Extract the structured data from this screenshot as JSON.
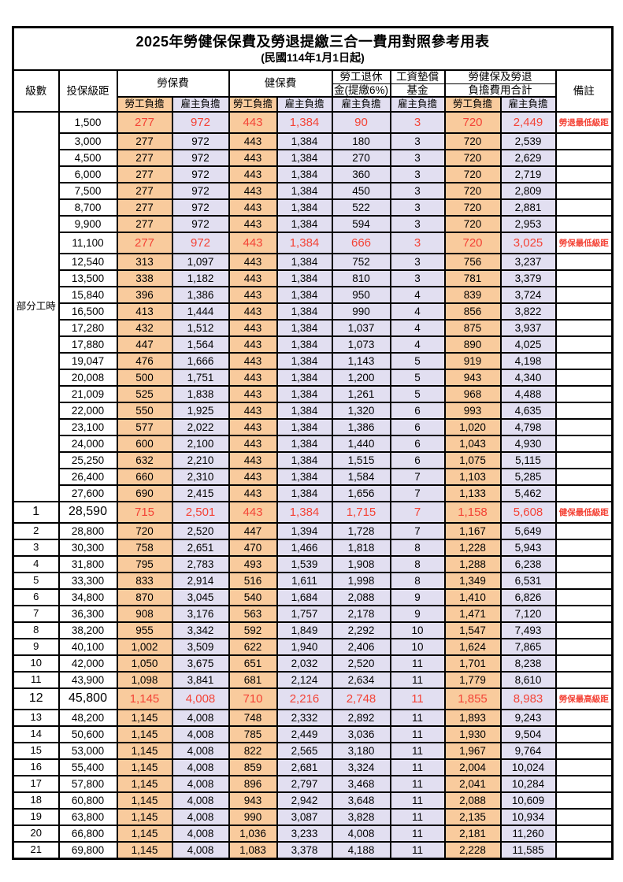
{
  "title": "2025年勞健保保費及勞退提繳三合一費用對照參考用表",
  "subtitle": "(民國114年1月1日起)",
  "header": {
    "level": "級數",
    "salary": "投保級距",
    "labor": "勞保費",
    "health": "健保費",
    "pension_line1": "勞工退休",
    "pension_line2": "金(提繳6%)",
    "fund_line1": "工資墊償",
    "fund_line2": "基金",
    "total_line1": "勞健保及勞退",
    "total_line2": "負擔費用合計",
    "remark": "備註",
    "employee_share": "勞工負擔",
    "employer_share": "雇主負擔"
  },
  "part_time_label": "部分工時",
  "colors": {
    "employee_bg": "#F9CB9D",
    "employer_bg": "#E2DFF1",
    "highlight_text": "#F44336",
    "border": "#000000"
  },
  "rows": [
    {
      "level": "",
      "salary": "1,500",
      "labor_emp": "277",
      "labor_er": "972",
      "health_emp": "443",
      "health_er": "1,384",
      "pension_er": "90",
      "fund_er": "3",
      "total_emp": "720",
      "total_er": "2,449",
      "remark": "勞退最低級距",
      "highlight": true
    },
    {
      "level": "",
      "salary": "3,000",
      "labor_emp": "277",
      "labor_er": "972",
      "health_emp": "443",
      "health_er": "1,384",
      "pension_er": "180",
      "fund_er": "3",
      "total_emp": "720",
      "total_er": "2,539",
      "remark": "",
      "highlight": false
    },
    {
      "level": "",
      "salary": "4,500",
      "labor_emp": "277",
      "labor_er": "972",
      "health_emp": "443",
      "health_er": "1,384",
      "pension_er": "270",
      "fund_er": "3",
      "total_emp": "720",
      "total_er": "2,629",
      "remark": "",
      "highlight": false
    },
    {
      "level": "",
      "salary": "6,000",
      "labor_emp": "277",
      "labor_er": "972",
      "health_emp": "443",
      "health_er": "1,384",
      "pension_er": "360",
      "fund_er": "3",
      "total_emp": "720",
      "total_er": "2,719",
      "remark": "",
      "highlight": false
    },
    {
      "level": "",
      "salary": "7,500",
      "labor_emp": "277",
      "labor_er": "972",
      "health_emp": "443",
      "health_er": "1,384",
      "pension_er": "450",
      "fund_er": "3",
      "total_emp": "720",
      "total_er": "2,809",
      "remark": "",
      "highlight": false
    },
    {
      "level": "",
      "salary": "8,700",
      "labor_emp": "277",
      "labor_er": "972",
      "health_emp": "443",
      "health_er": "1,384",
      "pension_er": "522",
      "fund_er": "3",
      "total_emp": "720",
      "total_er": "2,881",
      "remark": "",
      "highlight": false
    },
    {
      "level": "",
      "salary": "9,900",
      "labor_emp": "277",
      "labor_er": "972",
      "health_emp": "443",
      "health_er": "1,384",
      "pension_er": "594",
      "fund_er": "3",
      "total_emp": "720",
      "total_er": "2,953",
      "remark": "",
      "highlight": false
    },
    {
      "level": "",
      "salary": "11,100",
      "labor_emp": "277",
      "labor_er": "972",
      "health_emp": "443",
      "health_er": "1,384",
      "pension_er": "666",
      "fund_er": "3",
      "total_emp": "720",
      "total_er": "3,025",
      "remark": "勞保最低級距",
      "highlight": true
    },
    {
      "level": "",
      "salary": "12,540",
      "labor_emp": "313",
      "labor_er": "1,097",
      "health_emp": "443",
      "health_er": "1,384",
      "pension_er": "752",
      "fund_er": "3",
      "total_emp": "756",
      "total_er": "3,237",
      "remark": "",
      "highlight": false
    },
    {
      "level": "",
      "salary": "13,500",
      "labor_emp": "338",
      "labor_er": "1,182",
      "health_emp": "443",
      "health_er": "1,384",
      "pension_er": "810",
      "fund_er": "3",
      "total_emp": "781",
      "total_er": "3,379",
      "remark": "",
      "highlight": false
    },
    {
      "level": "",
      "salary": "15,840",
      "labor_emp": "396",
      "labor_er": "1,386",
      "health_emp": "443",
      "health_er": "1,384",
      "pension_er": "950",
      "fund_er": "4",
      "total_emp": "839",
      "total_er": "3,724",
      "remark": "",
      "highlight": false
    },
    {
      "level": "",
      "salary": "16,500",
      "labor_emp": "413",
      "labor_er": "1,444",
      "health_emp": "443",
      "health_er": "1,384",
      "pension_er": "990",
      "fund_er": "4",
      "total_emp": "856",
      "total_er": "3,822",
      "remark": "",
      "highlight": false
    },
    {
      "level": "",
      "salary": "17,280",
      "labor_emp": "432",
      "labor_er": "1,512",
      "health_emp": "443",
      "health_er": "1,384",
      "pension_er": "1,037",
      "fund_er": "4",
      "total_emp": "875",
      "total_er": "3,937",
      "remark": "",
      "highlight": false
    },
    {
      "level": "",
      "salary": "17,880",
      "labor_emp": "447",
      "labor_er": "1,564",
      "health_emp": "443",
      "health_er": "1,384",
      "pension_er": "1,073",
      "fund_er": "4",
      "total_emp": "890",
      "total_er": "4,025",
      "remark": "",
      "highlight": false
    },
    {
      "level": "",
      "salary": "19,047",
      "labor_emp": "476",
      "labor_er": "1,666",
      "health_emp": "443",
      "health_er": "1,384",
      "pension_er": "1,143",
      "fund_er": "5",
      "total_emp": "919",
      "total_er": "4,198",
      "remark": "",
      "highlight": false
    },
    {
      "level": "",
      "salary": "20,008",
      "labor_emp": "500",
      "labor_er": "1,751",
      "health_emp": "443",
      "health_er": "1,384",
      "pension_er": "1,200",
      "fund_er": "5",
      "total_emp": "943",
      "total_er": "4,340",
      "remark": "",
      "highlight": false
    },
    {
      "level": "",
      "salary": "21,009",
      "labor_emp": "525",
      "labor_er": "1,838",
      "health_emp": "443",
      "health_er": "1,384",
      "pension_er": "1,261",
      "fund_er": "5",
      "total_emp": "968",
      "total_er": "4,488",
      "remark": "",
      "highlight": false
    },
    {
      "level": "",
      "salary": "22,000",
      "labor_emp": "550",
      "labor_er": "1,925",
      "health_emp": "443",
      "health_er": "1,384",
      "pension_er": "1,320",
      "fund_er": "6",
      "total_emp": "993",
      "total_er": "4,635",
      "remark": "",
      "highlight": false
    },
    {
      "level": "",
      "salary": "23,100",
      "labor_emp": "577",
      "labor_er": "2,022",
      "health_emp": "443",
      "health_er": "1,384",
      "pension_er": "1,386",
      "fund_er": "6",
      "total_emp": "1,020",
      "total_er": "4,798",
      "remark": "",
      "highlight": false
    },
    {
      "level": "",
      "salary": "24,000",
      "labor_emp": "600",
      "labor_er": "2,100",
      "health_emp": "443",
      "health_er": "1,384",
      "pension_er": "1,440",
      "fund_er": "6",
      "total_emp": "1,043",
      "total_er": "4,930",
      "remark": "",
      "highlight": false
    },
    {
      "level": "",
      "salary": "25,250",
      "labor_emp": "632",
      "labor_er": "2,210",
      "health_emp": "443",
      "health_er": "1,384",
      "pension_er": "1,515",
      "fund_er": "6",
      "total_emp": "1,075",
      "total_er": "5,115",
      "remark": "",
      "highlight": false
    },
    {
      "level": "",
      "salary": "26,400",
      "labor_emp": "660",
      "labor_er": "2,310",
      "health_emp": "443",
      "health_er": "1,384",
      "pension_er": "1,584",
      "fund_er": "7",
      "total_emp": "1,103",
      "total_er": "5,285",
      "remark": "",
      "highlight": false
    },
    {
      "level": "",
      "salary": "27,600",
      "labor_emp": "690",
      "labor_er": "2,415",
      "health_emp": "443",
      "health_er": "1,384",
      "pension_er": "1,656",
      "fund_er": "7",
      "total_emp": "1,133",
      "total_er": "5,462",
      "remark": "",
      "highlight": false
    },
    {
      "level": "1",
      "salary": "28,590",
      "labor_emp": "715",
      "labor_er": "2,501",
      "health_emp": "443",
      "health_er": "1,384",
      "pension_er": "1,715",
      "fund_er": "7",
      "total_emp": "1,158",
      "total_er": "5,608",
      "remark": "健保最低級距",
      "highlight": true
    },
    {
      "level": "2",
      "salary": "28,800",
      "labor_emp": "720",
      "labor_er": "2,520",
      "health_emp": "447",
      "health_er": "1,394",
      "pension_er": "1,728",
      "fund_er": "7",
      "total_emp": "1,167",
      "total_er": "5,649",
      "remark": "",
      "highlight": false
    },
    {
      "level": "3",
      "salary": "30,300",
      "labor_emp": "758",
      "labor_er": "2,651",
      "health_emp": "470",
      "health_er": "1,466",
      "pension_er": "1,818",
      "fund_er": "8",
      "total_emp": "1,228",
      "total_er": "5,943",
      "remark": "",
      "highlight": false
    },
    {
      "level": "4",
      "salary": "31,800",
      "labor_emp": "795",
      "labor_er": "2,783",
      "health_emp": "493",
      "health_er": "1,539",
      "pension_er": "1,908",
      "fund_er": "8",
      "total_emp": "1,288",
      "total_er": "6,238",
      "remark": "",
      "highlight": false
    },
    {
      "level": "5",
      "salary": "33,300",
      "labor_emp": "833",
      "labor_er": "2,914",
      "health_emp": "516",
      "health_er": "1,611",
      "pension_er": "1,998",
      "fund_er": "8",
      "total_emp": "1,349",
      "total_er": "6,531",
      "remark": "",
      "highlight": false
    },
    {
      "level": "6",
      "salary": "34,800",
      "labor_emp": "870",
      "labor_er": "3,045",
      "health_emp": "540",
      "health_er": "1,684",
      "pension_er": "2,088",
      "fund_er": "9",
      "total_emp": "1,410",
      "total_er": "6,826",
      "remark": "",
      "highlight": false
    },
    {
      "level": "7",
      "salary": "36,300",
      "labor_emp": "908",
      "labor_er": "3,176",
      "health_emp": "563",
      "health_er": "1,757",
      "pension_er": "2,178",
      "fund_er": "9",
      "total_emp": "1,471",
      "total_er": "7,120",
      "remark": "",
      "highlight": false
    },
    {
      "level": "8",
      "salary": "38,200",
      "labor_emp": "955",
      "labor_er": "3,342",
      "health_emp": "592",
      "health_er": "1,849",
      "pension_er": "2,292",
      "fund_er": "10",
      "total_emp": "1,547",
      "total_er": "7,493",
      "remark": "",
      "highlight": false
    },
    {
      "level": "9",
      "salary": "40,100",
      "labor_emp": "1,002",
      "labor_er": "3,509",
      "health_emp": "622",
      "health_er": "1,940",
      "pension_er": "2,406",
      "fund_er": "10",
      "total_emp": "1,624",
      "total_er": "7,865",
      "remark": "",
      "highlight": false
    },
    {
      "level": "10",
      "salary": "42,000",
      "labor_emp": "1,050",
      "labor_er": "3,675",
      "health_emp": "651",
      "health_er": "2,032",
      "pension_er": "2,520",
      "fund_er": "11",
      "total_emp": "1,701",
      "total_er": "8,238",
      "remark": "",
      "highlight": false
    },
    {
      "level": "11",
      "salary": "43,900",
      "labor_emp": "1,098",
      "labor_er": "3,841",
      "health_emp": "681",
      "health_er": "2,124",
      "pension_er": "2,634",
      "fund_er": "11",
      "total_emp": "1,779",
      "total_er": "8,610",
      "remark": "",
      "highlight": false
    },
    {
      "level": "12",
      "salary": "45,800",
      "labor_emp": "1,145",
      "labor_er": "4,008",
      "health_emp": "710",
      "health_er": "2,216",
      "pension_er": "2,748",
      "fund_er": "11",
      "total_emp": "1,855",
      "total_er": "8,983",
      "remark": "勞保最高級距",
      "highlight": true
    },
    {
      "level": "13",
      "salary": "48,200",
      "labor_emp": "1,145",
      "labor_er": "4,008",
      "health_emp": "748",
      "health_er": "2,332",
      "pension_er": "2,892",
      "fund_er": "11",
      "total_emp": "1,893",
      "total_er": "9,243",
      "remark": "",
      "highlight": false
    },
    {
      "level": "14",
      "salary": "50,600",
      "labor_emp": "1,145",
      "labor_er": "4,008",
      "health_emp": "785",
      "health_er": "2,449",
      "pension_er": "3,036",
      "fund_er": "11",
      "total_emp": "1,930",
      "total_er": "9,504",
      "remark": "",
      "highlight": false
    },
    {
      "level": "15",
      "salary": "53,000",
      "labor_emp": "1,145",
      "labor_er": "4,008",
      "health_emp": "822",
      "health_er": "2,565",
      "pension_er": "3,180",
      "fund_er": "11",
      "total_emp": "1,967",
      "total_er": "9,764",
      "remark": "",
      "highlight": false
    },
    {
      "level": "16",
      "salary": "55,400",
      "labor_emp": "1,145",
      "labor_er": "4,008",
      "health_emp": "859",
      "health_er": "2,681",
      "pension_er": "3,324",
      "fund_er": "11",
      "total_emp": "2,004",
      "total_er": "10,024",
      "remark": "",
      "highlight": false
    },
    {
      "level": "17",
      "salary": "57,800",
      "labor_emp": "1,145",
      "labor_er": "4,008",
      "health_emp": "896",
      "health_er": "2,797",
      "pension_er": "3,468",
      "fund_er": "11",
      "total_emp": "2,041",
      "total_er": "10,284",
      "remark": "",
      "highlight": false
    },
    {
      "level": "18",
      "salary": "60,800",
      "labor_emp": "1,145",
      "labor_er": "4,008",
      "health_emp": "943",
      "health_er": "2,942",
      "pension_er": "3,648",
      "fund_er": "11",
      "total_emp": "2,088",
      "total_er": "10,609",
      "remark": "",
      "highlight": false
    },
    {
      "level": "19",
      "salary": "63,800",
      "labor_emp": "1,145",
      "labor_er": "4,008",
      "health_emp": "990",
      "health_er": "3,087",
      "pension_er": "3,828",
      "fund_er": "11",
      "total_emp": "2,135",
      "total_er": "10,934",
      "remark": "",
      "highlight": false
    },
    {
      "level": "20",
      "salary": "66,800",
      "labor_emp": "1,145",
      "labor_er": "4,008",
      "health_emp": "1,036",
      "health_er": "3,233",
      "pension_er": "4,008",
      "fund_er": "11",
      "total_emp": "2,181",
      "total_er": "11,260",
      "remark": "",
      "highlight": false
    },
    {
      "level": "21",
      "salary": "69,800",
      "labor_emp": "1,145",
      "labor_er": "4,008",
      "health_emp": "1,083",
      "health_er": "3,378",
      "pension_er": "4,188",
      "fund_er": "11",
      "total_emp": "2,228",
      "total_er": "11,585",
      "remark": "",
      "highlight": false
    }
  ]
}
